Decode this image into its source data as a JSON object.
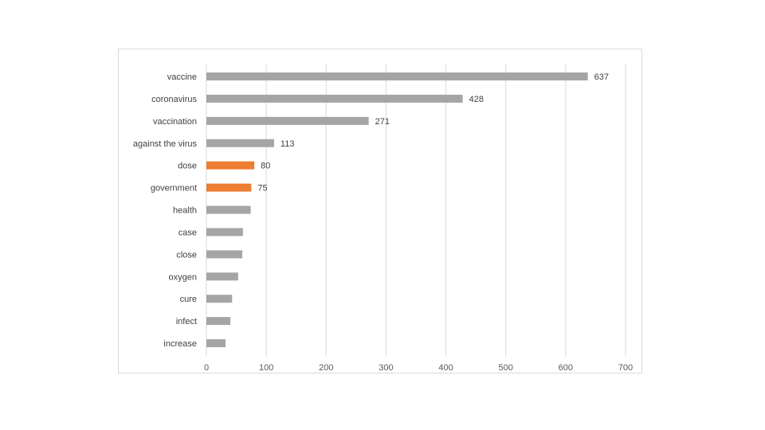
{
  "chart_data": {
    "type": "bar",
    "orientation": "horizontal",
    "categories": [
      "vaccine",
      "coronavirus",
      "vaccination",
      "against the virus",
      "dose",
      "government",
      "health",
      "case",
      "close",
      "oxygen",
      "cure",
      "infect",
      "increase"
    ],
    "values": [
      637,
      428,
      271,
      113,
      80,
      75,
      74,
      61,
      60,
      53,
      43,
      40,
      32
    ],
    "data_labels": [
      "637",
      "428",
      "271",
      "113",
      "80",
      "75",
      "",
      "",
      "",
      "",
      "",
      "",
      ""
    ],
    "highlighted": [
      "dose",
      "government"
    ],
    "colors": {
      "default": "#a5a5a5",
      "highlight": "#ed7d31"
    },
    "xlim": [
      0,
      700
    ],
    "xticks": [
      0,
      100,
      200,
      300,
      400,
      500,
      600,
      700
    ],
    "grid": "vertical",
    "legend": "none",
    "title": "",
    "xlabel": "",
    "ylabel": ""
  }
}
